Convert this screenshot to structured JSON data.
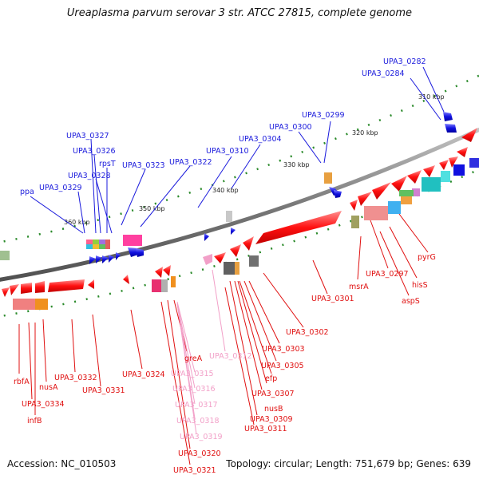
{
  "title": "Ureaplasma parvum serovar 3 str. ATCC 27815, complete genome",
  "accession": "Accession: NC_010503",
  "summary": "Topology: circular; Length: 751,679 bp; Genes: 639",
  "ticks": [
    "310 kbp",
    "320 kbp",
    "330 kbp",
    "340 kbp",
    "350 kbp",
    "360 kbp"
  ],
  "labels_top": [
    "UPA3_0282",
    "UPA3_0284",
    "UPA3_0299",
    "UPA3_0300",
    "UPA3_0304",
    "UPA3_0310",
    "UPA3_0322",
    "UPA3_0323",
    "UPA3_0327",
    "UPA3_0326",
    "rpsT",
    "UPA3_0328",
    "UPA3_0329",
    "ppa"
  ],
  "labels_bottom": [
    "pyrG",
    "UPA3_0297",
    "hisS",
    "aspS",
    "msrA",
    "UPA3_0301",
    "UPA3_0302",
    "UPA3_0303",
    "UPA3_0305",
    "efp",
    "nusB",
    "UPA3_0307",
    "UPA3_0309",
    "UPA3_0311",
    "UPA3_0312",
    "greA",
    "UPA3_0315",
    "UPA3_0316",
    "UPA3_0317",
    "UPA3_0318",
    "UPA3_0319",
    "UPA3_0320",
    "UPA3_0321",
    "UPA3_0324",
    "UPA3_0332",
    "UPA3_0331",
    "nusA",
    "rbfA",
    "UPA3_0334",
    "infB"
  ],
  "colors": {
    "forward_gene": "#1a1adc",
    "reverse_gene": "#ff1010",
    "rna_gene": "#f2a0c8",
    "backbone": "#7a7a7a",
    "tick": "#2a8a2a"
  }
}
